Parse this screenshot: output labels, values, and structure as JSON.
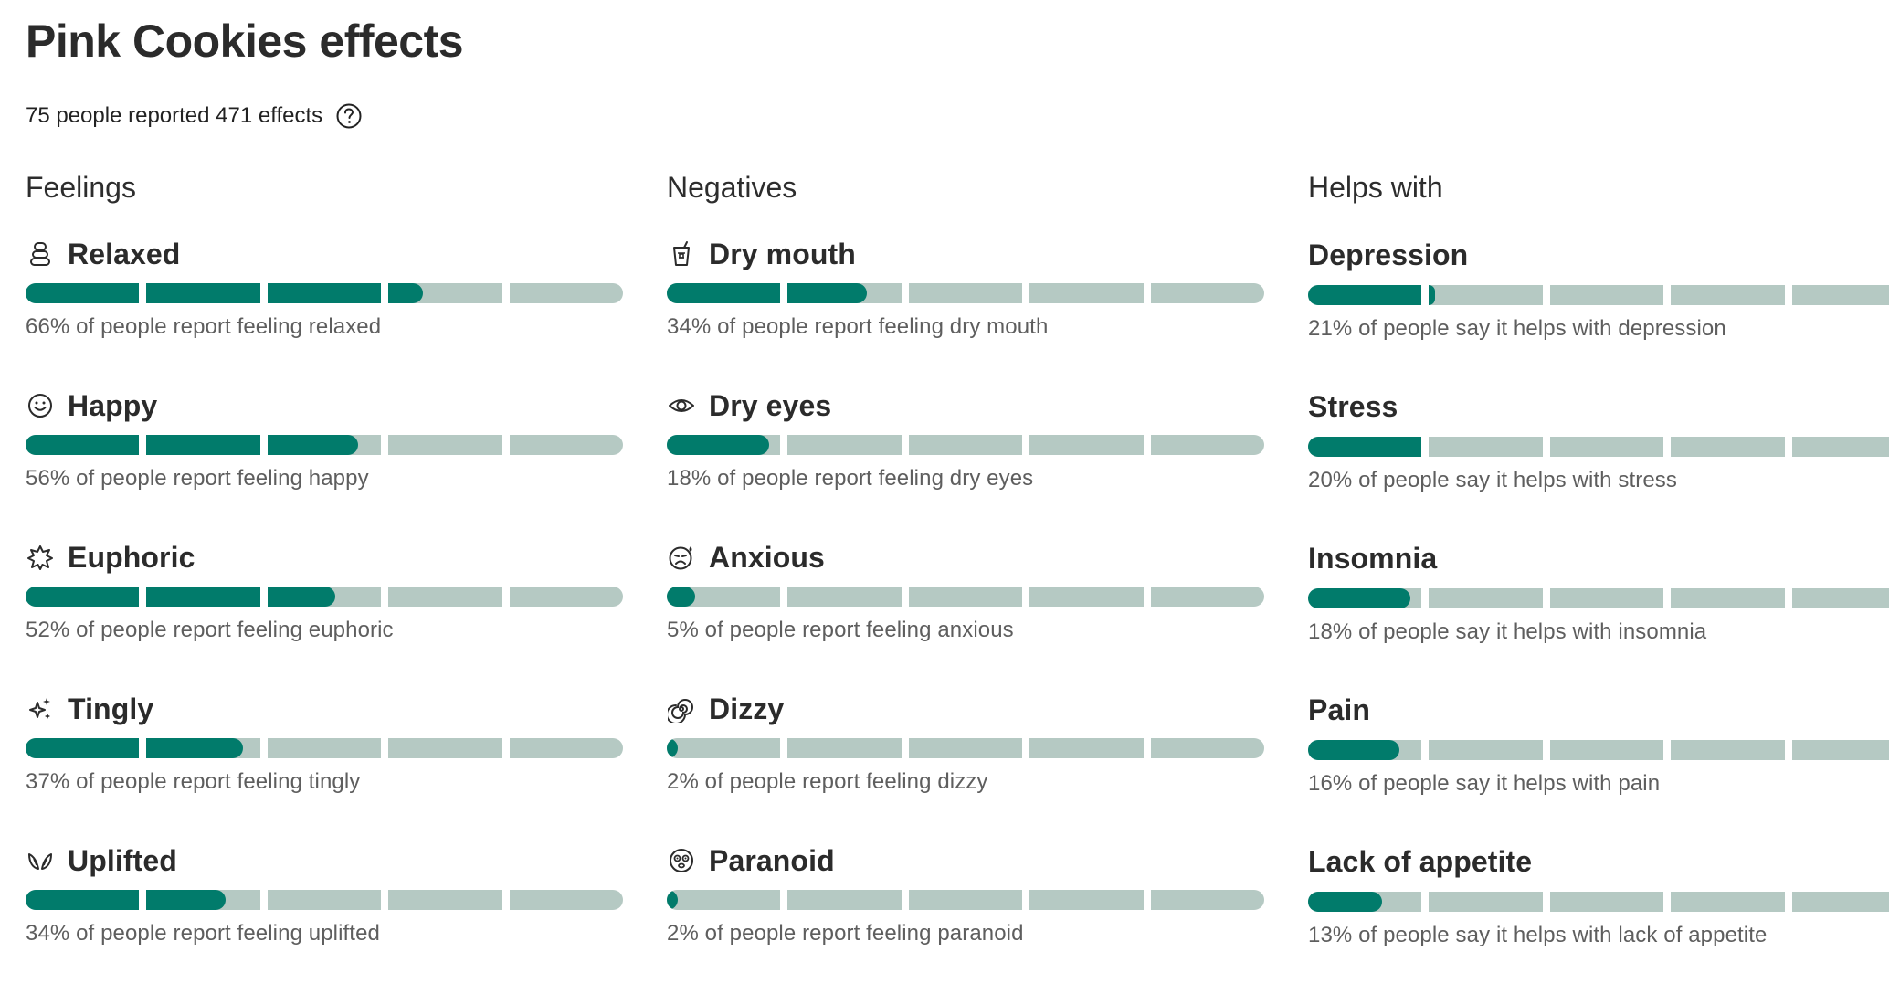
{
  "page": {
    "title": "Pink Cookies effects",
    "summary": "75 people reported 471 effects"
  },
  "colors": {
    "fill": "#017b6b",
    "track": "#b5c9c3"
  },
  "columns": [
    {
      "title": "Feelings",
      "items": [
        {
          "label": "Relaxed",
          "icon": "person-stack-icon",
          "percent": 66,
          "text": "66% of people report feeling relaxed"
        },
        {
          "label": "Happy",
          "icon": "smile-icon",
          "percent": 56,
          "text": "56% of people report feeling happy"
        },
        {
          "label": "Euphoric",
          "icon": "starburst-icon",
          "percent": 52,
          "text": "52% of people report feeling euphoric"
        },
        {
          "label": "Tingly",
          "icon": "sparkles-icon",
          "percent": 37,
          "text": "37% of people report feeling tingly"
        },
        {
          "label": "Uplifted",
          "icon": "wings-icon",
          "percent": 34,
          "text": "34% of people report feeling uplifted"
        }
      ]
    },
    {
      "title": "Negatives",
      "items": [
        {
          "label": "Dry mouth",
          "icon": "cup-icon",
          "percent": 34,
          "text": "34% of people report feeling dry mouth"
        },
        {
          "label": "Dry eyes",
          "icon": "eye-icon",
          "percent": 18,
          "text": "18% of people report feeling dry eyes"
        },
        {
          "label": "Anxious",
          "icon": "anxious-face-icon",
          "percent": 5,
          "text": "5% of people report feeling anxious"
        },
        {
          "label": "Dizzy",
          "icon": "spiral-icon",
          "percent": 2,
          "text": "2% of people report feeling dizzy"
        },
        {
          "label": "Paranoid",
          "icon": "paranoid-face-icon",
          "percent": 2,
          "text": "2% of people report feeling paranoid"
        }
      ]
    },
    {
      "title": "Helps with",
      "items": [
        {
          "label": "Depression",
          "percent": 21,
          "text": "21% of people say it helps with depression"
        },
        {
          "label": "Stress",
          "percent": 20,
          "text": "20% of people say it helps with stress"
        },
        {
          "label": "Insomnia",
          "percent": 18,
          "text": "18% of people say it helps with insomnia"
        },
        {
          "label": "Pain",
          "percent": 16,
          "text": "16% of people say it helps with pain"
        },
        {
          "label": "Lack of appetite",
          "percent": 13,
          "text": "13% of people say it helps with lack of appetite"
        }
      ]
    }
  ]
}
